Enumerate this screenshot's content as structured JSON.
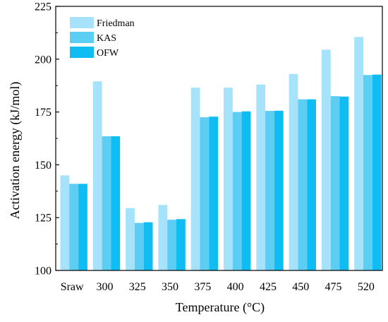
{
  "chart_data": {
    "type": "bar",
    "xlabel": "Temperature (°C)",
    "ylabel": "Activation energy (kJ/mol)",
    "ylim": [
      100,
      225
    ],
    "yticks": [
      100,
      125,
      150,
      175,
      200,
      225
    ],
    "categories": [
      "Sraw",
      "300",
      "325",
      "350",
      "375",
      "400",
      "425",
      "450",
      "475",
      "520"
    ],
    "series": [
      {
        "name": "Friedman",
        "color": "#a6e3fa",
        "values": [
          145,
          189.5,
          129.5,
          131,
          186.5,
          186.5,
          188,
          193,
          204.5,
          210.5
        ]
      },
      {
        "name": "KAS",
        "color": "#5ccdf3",
        "values": [
          141,
          163.5,
          122.5,
          124,
          172.5,
          175,
          175.5,
          181,
          182.5,
          192.5
        ]
      },
      {
        "name": "OFW",
        "color": "#0fbdf2",
        "values": [
          141,
          163.5,
          122.8,
          124.3,
          172.8,
          175.3,
          175.6,
          181,
          182.3,
          192.7
        ]
      }
    ],
    "legend_position": "top-left",
    "grid": false
  }
}
